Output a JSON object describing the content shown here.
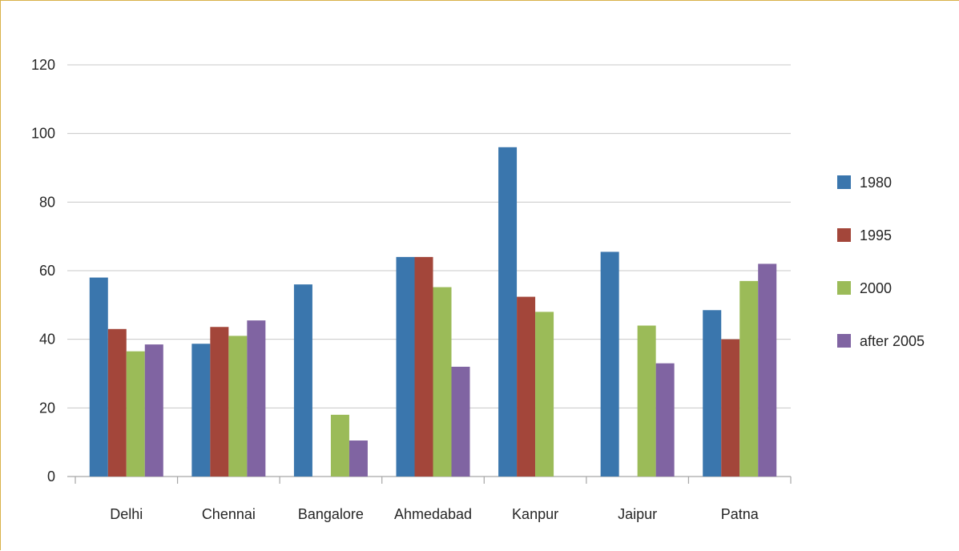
{
  "chart_data": {
    "type": "bar",
    "categories": [
      "Delhi",
      "Chennai",
      "Bangalore",
      "Ahmedabad",
      "Kanpur",
      "Jaipur",
      "Patna"
    ],
    "series": [
      {
        "name": "1980",
        "color": "#3A76AD",
        "values": [
          58,
          38.7,
          56,
          64,
          96,
          65.5,
          48.5
        ]
      },
      {
        "name": "1995",
        "color": "#A3463A",
        "values": [
          43,
          43.6,
          null,
          64,
          52.4,
          null,
          40
        ]
      },
      {
        "name": "2000",
        "color": "#9BBB58",
        "values": [
          36.5,
          41,
          18,
          55.2,
          48,
          44,
          57
        ]
      },
      {
        "name": "after 2005",
        "color": "#8064A2",
        "values": [
          38.5,
          45.5,
          10.5,
          32,
          null,
          33,
          62
        ]
      }
    ],
    "yticks": [
      "0",
      "20",
      "40",
      "60",
      "80",
      "100",
      "120"
    ],
    "ylim": [
      0,
      120
    ],
    "grid": true,
    "legend_position": "right",
    "title": "",
    "xlabel": "",
    "ylabel": ""
  }
}
